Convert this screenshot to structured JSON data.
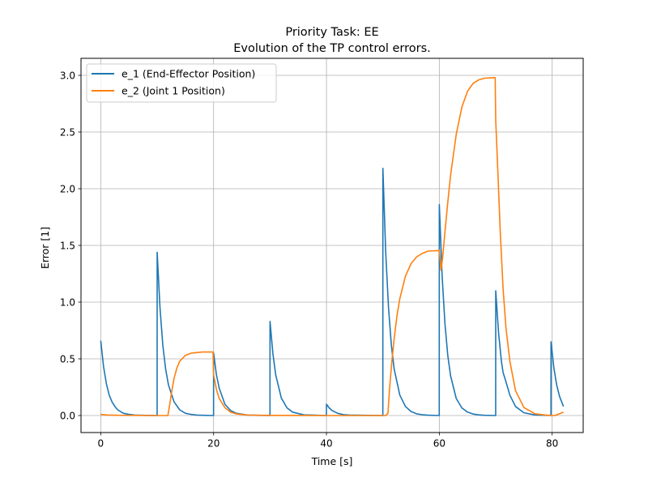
{
  "chart_data": {
    "type": "line",
    "title": "Priority Task: EE",
    "subtitle": "Evolution of the TP control errors.",
    "xlabel": "Time [s]",
    "ylabel": "Error [1]",
    "xlim": [
      -3.5,
      85.5
    ],
    "ylim": [
      -0.15,
      3.15
    ],
    "xticks": [
      0,
      20,
      40,
      60,
      80
    ],
    "yticks": [
      0.0,
      0.5,
      1.0,
      1.5,
      2.0,
      2.5,
      3.0
    ],
    "xtick_labels": [
      "0",
      "20",
      "40",
      "60",
      "80"
    ],
    "ytick_labels": [
      "0.0",
      "0.5",
      "1.0",
      "1.5",
      "2.0",
      "2.5",
      "3.0"
    ],
    "grid": true,
    "legend_position": "upper-left",
    "series": [
      {
        "name": "e_1 (End-Effector Position)",
        "color": "#1f77b4",
        "x": [
          0,
          0.5,
          1,
          1.5,
          2,
          2.5,
          3,
          4,
          5,
          6,
          8,
          9.99,
          10,
          10.5,
          11,
          11.5,
          12,
          13,
          14,
          15,
          16,
          17,
          18,
          19.99,
          20,
          20.5,
          21,
          22,
          23,
          24,
          26,
          28,
          29.99,
          30,
          30.5,
          31,
          32,
          33,
          34,
          36,
          39.99,
          40,
          40.5,
          41,
          42,
          43,
          44,
          49.99,
          50,
          50.5,
          51,
          51.5,
          52,
          53,
          54,
          55,
          56,
          57,
          58,
          59.99,
          60,
          60.5,
          61,
          61.5,
          62,
          63,
          64,
          65,
          66,
          67,
          68,
          69.99,
          70,
          70.5,
          71,
          71.3,
          71.8,
          72.5,
          73.5,
          75,
          77,
          79.79,
          79.8,
          80.3,
          80.8,
          81.3,
          82
        ],
        "y": [
          0.66,
          0.43,
          0.28,
          0.18,
          0.12,
          0.08,
          0.05,
          0.02,
          0.01,
          0.004,
          0.001,
          0.0,
          1.44,
          0.95,
          0.62,
          0.41,
          0.27,
          0.12,
          0.05,
          0.02,
          0.01,
          0.004,
          0.002,
          0.0,
          0.55,
          0.36,
          0.24,
          0.1,
          0.045,
          0.02,
          0.004,
          0.001,
          0.0,
          0.83,
          0.55,
          0.36,
          0.155,
          0.068,
          0.03,
          0.006,
          0.0,
          0.1,
          0.066,
          0.044,
          0.019,
          0.008,
          0.004,
          0.0,
          2.18,
          1.44,
          0.95,
          0.62,
          0.41,
          0.18,
          0.08,
          0.035,
          0.015,
          0.007,
          0.003,
          0.0,
          1.86,
          1.23,
          0.81,
          0.53,
          0.35,
          0.15,
          0.067,
          0.03,
          0.013,
          0.006,
          0.002,
          0.0,
          1.1,
          0.73,
          0.48,
          0.38,
          0.3,
          0.18,
          0.08,
          0.024,
          0.005,
          0.0,
          0.65,
          0.42,
          0.27,
          0.17,
          0.08
        ]
      },
      {
        "name": "e_2 (Joint 1 Position)",
        "color": "#ff7f0e",
        "x": [
          0,
          1,
          3,
          6,
          9,
          11.9,
          12.2,
          12.6,
          13,
          13.5,
          14,
          15,
          16,
          17,
          18,
          19.9,
          20,
          20.5,
          21,
          22,
          23,
          24,
          26,
          30,
          40,
          45,
          50.5,
          50.9,
          51.2,
          51.6,
          52,
          52.5,
          53,
          54,
          55,
          56,
          57,
          58,
          59.9,
          60,
          60.3,
          60.6,
          61,
          61.5,
          62,
          63,
          64,
          65,
          66,
          67,
          68,
          69.9,
          70,
          70.4,
          70.8,
          71.3,
          71.8,
          72.5,
          73.5,
          75,
          77,
          79,
          80.5,
          81.5,
          82
        ],
        "y": [
          0.01,
          0.005,
          0.002,
          0.001,
          0.0,
          0.0,
          0.09,
          0.22,
          0.33,
          0.42,
          0.48,
          0.53,
          0.55,
          0.555,
          0.56,
          0.56,
          0.36,
          0.23,
          0.15,
          0.07,
          0.03,
          0.015,
          0.004,
          0.001,
          0.0,
          0.0,
          0.0,
          0.02,
          0.25,
          0.48,
          0.68,
          0.88,
          1.03,
          1.23,
          1.34,
          1.4,
          1.43,
          1.45,
          1.455,
          1.46,
          1.28,
          1.4,
          1.62,
          1.88,
          2.12,
          2.48,
          2.72,
          2.86,
          2.93,
          2.96,
          2.975,
          2.98,
          2.6,
          2.12,
          1.62,
          1.12,
          0.78,
          0.48,
          0.22,
          0.07,
          0.015,
          0.003,
          0.0,
          0.02,
          0.03
        ]
      }
    ]
  }
}
